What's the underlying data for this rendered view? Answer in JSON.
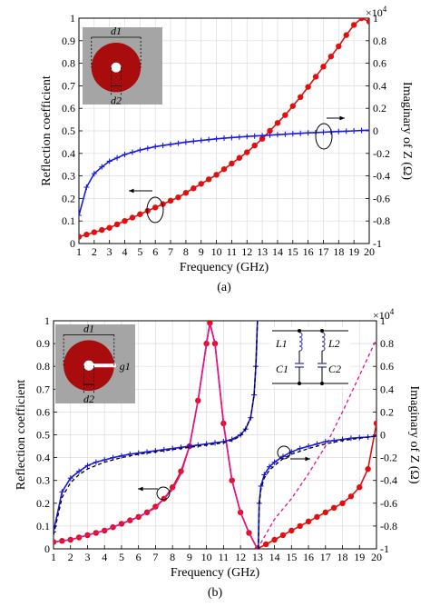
{
  "chart_data": [
    {
      "type": "line",
      "panel_label": "(a)",
      "xlabel": "Frequency (GHz)",
      "ylabel": "Reflection coefficient",
      "y2label": "Imaginary of Z (Ω)",
      "y2_multiplier": "×10",
      "y2_multiplier_exp": "4",
      "xlim": [
        1,
        20
      ],
      "ylim": [
        0,
        1
      ],
      "y2lim": [
        -1,
        1
      ],
      "grid": true,
      "xticks": [
        1,
        2,
        3,
        4,
        5,
        6,
        7,
        8,
        9,
        10,
        11,
        12,
        13,
        14,
        15,
        16,
        17,
        18,
        19,
        20
      ],
      "yticks": [
        0,
        0.1,
        0.2,
        0.3,
        0.4,
        0.5,
        0.6,
        0.7,
        0.8,
        0.9,
        1
      ],
      "y2ticks": [
        -1,
        -0.8,
        -0.6,
        -0.4,
        -0.2,
        0,
        0.2,
        0.4,
        0.6,
        0.8,
        1
      ],
      "inset": {
        "labels": [
          "d1",
          "d2"
        ],
        "gap": false
      },
      "series": [
        {
          "axis": "left",
          "color": "#e01010",
          "marker": "dot",
          "x": [
            1,
            1.5,
            2,
            2.5,
            3,
            3.5,
            4,
            4.5,
            5,
            5.5,
            6,
            6.5,
            7,
            7.5,
            8,
            8.5,
            9,
            9.5,
            10,
            10.5,
            11,
            11.5,
            12,
            12.5,
            13,
            13.5,
            14,
            14.5,
            15,
            15.5,
            16,
            16.5,
            17,
            17.5,
            18,
            18.5,
            19,
            19.5,
            20
          ],
          "y": [
            0.03,
            0.04,
            0.05,
            0.06,
            0.07,
            0.085,
            0.1,
            0.115,
            0.13,
            0.145,
            0.16,
            0.175,
            0.19,
            0.205,
            0.225,
            0.245,
            0.265,
            0.285,
            0.305,
            0.33,
            0.355,
            0.38,
            0.405,
            0.435,
            0.465,
            0.5,
            0.535,
            0.57,
            0.61,
            0.65,
            0.695,
            0.74,
            0.785,
            0.83,
            0.875,
            0.925,
            0.97,
            1.0,
            0.985
          ]
        },
        {
          "axis": "right",
          "color": "#1a1adf",
          "marker": "plus",
          "x": [
            1,
            1.5,
            2,
            2.5,
            3,
            3.5,
            4,
            4.5,
            5,
            5.5,
            6,
            6.5,
            7,
            7.5,
            8,
            8.5,
            9,
            9.5,
            10,
            10.5,
            11,
            11.5,
            12,
            12.5,
            13,
            13.5,
            14,
            14.5,
            15,
            15.5,
            16,
            16.5,
            17,
            17.5,
            18,
            18.5,
            19,
            19.5,
            20
          ],
          "y": [
            -0.75,
            -0.5,
            -0.38,
            -0.32,
            -0.27,
            -0.24,
            -0.21,
            -0.19,
            -0.17,
            -0.155,
            -0.14,
            -0.13,
            -0.12,
            -0.11,
            -0.1,
            -0.092,
            -0.085,
            -0.078,
            -0.071,
            -0.065,
            -0.06,
            -0.055,
            -0.05,
            -0.046,
            -0.042,
            -0.038,
            -0.034,
            -0.03,
            -0.026,
            -0.022,
            -0.018,
            -0.015,
            -0.012,
            -0.009,
            -0.006,
            -0.003,
            0.0,
            0.003,
            0.006
          ]
        }
      ]
    },
    {
      "type": "line",
      "panel_label": "(b)",
      "xlabel": "Frequency (GHz)",
      "ylabel": "Reflection coefficient",
      "y2label": "Imaginary of Z (Ω)",
      "y2_multiplier": "×10",
      "y2_multiplier_exp": "4",
      "xlim": [
        1,
        20
      ],
      "ylim": [
        0,
        1
      ],
      "y2lim": [
        -1,
        1
      ],
      "grid": true,
      "xticks": [
        1,
        2,
        3,
        4,
        5,
        6,
        7,
        8,
        9,
        10,
        11,
        12,
        13,
        14,
        15,
        16,
        17,
        18,
        19,
        20
      ],
      "yticks": [
        0,
        0.1,
        0.2,
        0.3,
        0.4,
        0.5,
        0.6,
        0.7,
        0.8,
        0.9,
        1
      ],
      "y2ticks": [
        -1,
        -0.8,
        -0.6,
        -0.4,
        -0.2,
        0,
        0.2,
        0.4,
        0.6,
        0.8,
        1
      ],
      "inset": {
        "labels": [
          "d1",
          "d2",
          "g1"
        ],
        "gap": true
      },
      "circuit": {
        "labels": [
          "L1",
          "L2",
          "C1",
          "C2"
        ]
      },
      "series": [
        {
          "axis": "left",
          "color": "#e01010",
          "marker": "dot",
          "x": [
            1,
            1.5,
            2,
            2.5,
            3,
            3.5,
            4,
            4.5,
            5,
            5.5,
            6,
            6.5,
            7,
            7.5,
            8,
            8.5,
            9,
            9.5,
            10,
            10.2,
            10.5,
            11,
            11.5,
            12,
            12.5,
            13,
            13.5,
            14,
            14.5,
            15,
            15.5,
            16,
            16.5,
            17,
            17.5,
            18,
            18.5,
            19,
            19.5,
            20
          ],
          "y": [
            0.03,
            0.035,
            0.04,
            0.05,
            0.06,
            0.07,
            0.08,
            0.095,
            0.11,
            0.125,
            0.14,
            0.16,
            0.185,
            0.22,
            0.27,
            0.34,
            0.45,
            0.65,
            0.9,
            0.99,
            0.9,
            0.55,
            0.3,
            0.16,
            0.07,
            0.0,
            0.02,
            0.04,
            0.06,
            0.08,
            0.1,
            0.12,
            0.14,
            0.16,
            0.18,
            0.2,
            0.23,
            0.27,
            0.35,
            0.55
          ]
        },
        {
          "axis": "left",
          "color": "#e0148c",
          "marker": "none",
          "dash": false,
          "x": [
            1,
            2,
            3,
            4,
            5,
            6,
            7,
            8,
            8.5,
            9,
            9.5,
            10,
            10.2,
            10.5,
            11,
            11.5,
            12,
            12.5,
            13
          ],
          "y": [
            0.03,
            0.04,
            0.06,
            0.08,
            0.11,
            0.14,
            0.18,
            0.26,
            0.33,
            0.45,
            0.65,
            0.9,
            0.99,
            0.9,
            0.55,
            0.3,
            0.16,
            0.07,
            0.0
          ]
        },
        {
          "axis": "left",
          "color": "#e0148c",
          "marker": "none",
          "dash": true,
          "x": [
            13,
            14,
            15,
            16,
            17,
            18,
            18.5,
            19,
            19.5,
            20
          ],
          "y": [
            0.0,
            0.13,
            0.22,
            0.33,
            0.45,
            0.6,
            0.68,
            0.76,
            0.84,
            0.92
          ]
        },
        {
          "axis": "right",
          "color": "#1a1adf",
          "marker": "plus",
          "x": [
            1,
            1.5,
            2,
            2.5,
            3,
            3.5,
            4,
            4.5,
            5,
            5.5,
            6,
            6.5,
            7,
            7.5,
            8,
            8.5,
            9,
            9.5,
            10,
            10.5,
            11,
            11.5,
            12,
            12.3,
            12.6,
            12.8,
            12.9,
            13.0,
            13.05,
            13.1,
            13.2,
            13.4,
            13.7,
            14,
            14.5,
            15,
            15.5,
            16,
            16.5,
            17,
            17.5,
            18,
            18.5,
            19,
            19.5,
            20
          ],
          "y": [
            -0.85,
            -0.5,
            -0.38,
            -0.32,
            -0.27,
            -0.24,
            -0.22,
            -0.2,
            -0.185,
            -0.17,
            -0.16,
            -0.15,
            -0.14,
            -0.13,
            -0.12,
            -0.11,
            -0.1,
            -0.09,
            -0.08,
            -0.07,
            -0.06,
            -0.04,
            0.0,
            0.05,
            0.15,
            0.35,
            0.6,
            1.0,
            -1.0,
            -0.6,
            -0.45,
            -0.35,
            -0.28,
            -0.24,
            -0.19,
            -0.15,
            -0.12,
            -0.1,
            -0.08,
            -0.06,
            -0.05,
            -0.04,
            -0.03,
            -0.025,
            -0.02,
            -0.01
          ]
        },
        {
          "axis": "right",
          "color": "#000000",
          "marker": "none",
          "dash": true,
          "x": [
            1,
            1.5,
            2,
            2.5,
            3,
            4,
            5,
            6,
            7,
            8,
            9,
            10,
            11,
            11.5,
            12,
            12.3,
            12.6,
            12.8,
            12.9,
            13.0,
            13.05,
            13.1,
            13.2,
            13.4,
            13.7,
            14,
            14.5,
            15,
            16,
            17,
            18,
            19,
            20
          ],
          "y": [
            -0.88,
            -0.55,
            -0.42,
            -0.35,
            -0.3,
            -0.24,
            -0.2,
            -0.17,
            -0.15,
            -0.13,
            -0.11,
            -0.09,
            -0.07,
            -0.05,
            -0.01,
            0.05,
            0.15,
            0.35,
            0.6,
            1.0,
            -1.0,
            -0.62,
            -0.48,
            -0.38,
            -0.31,
            -0.27,
            -0.21,
            -0.17,
            -0.12,
            -0.08,
            -0.05,
            -0.03,
            -0.01
          ]
        }
      ]
    }
  ]
}
